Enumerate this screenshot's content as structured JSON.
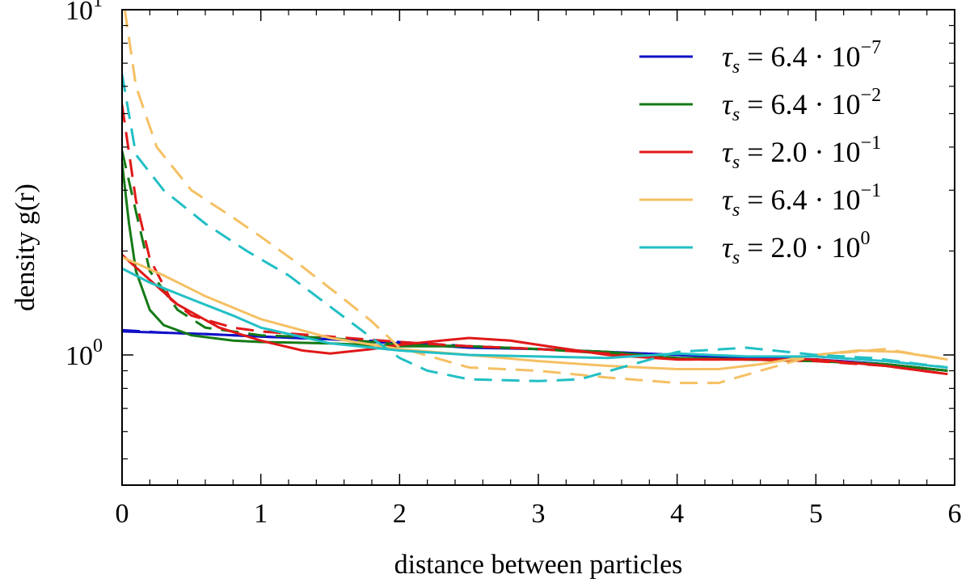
{
  "chart_data": {
    "type": "line",
    "title": "",
    "xlabel": "distance between particles",
    "ylabel": "density g(r)",
    "xlim": [
      0,
      6
    ],
    "ylim": [
      0.38,
      10
    ],
    "yscale": "log",
    "grid": false,
    "legend_position": "top-right",
    "x_ticks": [
      {
        "value": 0,
        "label": "0"
      },
      {
        "value": 1,
        "label": "1"
      },
      {
        "value": 2,
        "label": "2"
      },
      {
        "value": 3,
        "label": "3"
      },
      {
        "value": 4,
        "label": "4"
      },
      {
        "value": 5,
        "label": "5"
      },
      {
        "value": 6,
        "label": "6"
      }
    ],
    "y_ticks": [
      {
        "value": 1,
        "base": "10",
        "exp": "0"
      },
      {
        "value": 10,
        "base": "10",
        "exp": "1"
      }
    ],
    "series": [
      {
        "name": "τs = 6.4·10^-7",
        "legend": {
          "symbol": "τ",
          "sub": "s",
          "eq": " = 6.4 · 10",
          "exp": "−7"
        },
        "color": "#1010c8",
        "solid": [
          [
            0,
            1.17
          ],
          [
            0.3,
            1.16
          ],
          [
            0.6,
            1.15
          ],
          [
            1,
            1.13
          ],
          [
            1.5,
            1.11
          ],
          [
            2,
            1.08
          ],
          [
            2.5,
            1.05
          ],
          [
            3,
            1.04
          ],
          [
            3.5,
            1.02
          ],
          [
            4,
            1.0
          ],
          [
            4.5,
            0.98
          ],
          [
            5,
            0.97
          ],
          [
            5.5,
            0.94
          ],
          [
            5.95,
            0.9
          ]
        ],
        "dashed": [
          [
            0,
            1.18
          ],
          [
            0.3,
            1.16
          ],
          [
            0.6,
            1.15
          ],
          [
            1,
            1.13
          ],
          [
            1.5,
            1.11
          ],
          [
            2,
            1.09
          ],
          [
            2.5,
            1.06
          ],
          [
            3,
            1.04
          ],
          [
            3.5,
            1.02
          ],
          [
            4,
            1.0
          ],
          [
            4.5,
            0.98
          ],
          [
            5,
            0.97
          ],
          [
            5.5,
            0.94
          ],
          [
            5.95,
            0.9
          ]
        ]
      },
      {
        "name": "τs = 6.4·10^-2",
        "legend": {
          "symbol": "τ",
          "sub": "s",
          "eq": " = 6.4 · 10",
          "exp": "−2"
        },
        "color": "#157a15",
        "solid": [
          [
            0,
            3.6
          ],
          [
            0.05,
            2.4
          ],
          [
            0.1,
            1.75
          ],
          [
            0.2,
            1.35
          ],
          [
            0.3,
            1.22
          ],
          [
            0.5,
            1.14
          ],
          [
            0.8,
            1.1
          ],
          [
            1,
            1.09
          ],
          [
            1.5,
            1.08
          ],
          [
            2,
            1.06
          ],
          [
            2.5,
            1.06
          ],
          [
            3,
            1.04
          ],
          [
            3.5,
            1.02
          ],
          [
            4,
            0.98
          ],
          [
            4.5,
            0.97
          ],
          [
            5,
            0.96
          ],
          [
            5.5,
            0.94
          ],
          [
            5.95,
            0.9
          ]
        ],
        "dashed": [
          [
            0,
            3.9
          ],
          [
            0.1,
            2.6
          ],
          [
            0.2,
            1.75
          ],
          [
            0.4,
            1.35
          ],
          [
            0.6,
            1.2
          ],
          [
            1,
            1.14
          ],
          [
            1.5,
            1.12
          ],
          [
            2,
            1.07
          ],
          [
            2.5,
            1.06
          ],
          [
            3,
            1.04
          ],
          [
            3.5,
            1.01
          ],
          [
            4,
            0.98
          ],
          [
            4.5,
            0.97
          ],
          [
            5,
            0.96
          ],
          [
            5.5,
            0.94
          ],
          [
            5.95,
            0.9
          ]
        ]
      },
      {
        "name": "τs = 2.0·10^-1",
        "legend": {
          "symbol": "τ",
          "sub": "s",
          "eq": " = 2.0 · 10",
          "exp": "−1"
        },
        "color": "#e01818",
        "solid": [
          [
            0,
            1.95
          ],
          [
            0.2,
            1.65
          ],
          [
            0.4,
            1.4
          ],
          [
            0.7,
            1.2
          ],
          [
            1,
            1.1
          ],
          [
            1.3,
            1.03
          ],
          [
            1.5,
            1.01
          ],
          [
            1.8,
            1.04
          ],
          [
            2,
            1.07
          ],
          [
            2.3,
            1.1
          ],
          [
            2.5,
            1.12
          ],
          [
            2.8,
            1.1
          ],
          [
            3,
            1.07
          ],
          [
            3.5,
            1.0
          ],
          [
            4,
            0.97
          ],
          [
            4.5,
            0.97
          ],
          [
            5,
            0.97
          ],
          [
            5.5,
            0.93
          ],
          [
            5.95,
            0.88
          ]
        ],
        "dashed": [
          [
            0,
            5.3
          ],
          [
            0.1,
            2.8
          ],
          [
            0.2,
            1.9
          ],
          [
            0.35,
            1.45
          ],
          [
            0.5,
            1.3
          ],
          [
            0.8,
            1.2
          ],
          [
            1,
            1.17
          ],
          [
            1.5,
            1.13
          ],
          [
            2,
            1.09
          ],
          [
            2.5,
            1.06
          ],
          [
            3,
            1.04
          ],
          [
            3.5,
            1.01
          ],
          [
            4,
            0.97
          ],
          [
            4.5,
            0.97
          ],
          [
            5,
            0.96
          ],
          [
            5.5,
            0.93
          ],
          [
            5.95,
            0.88
          ]
        ]
      },
      {
        "name": "τs = 6.4·10^-1",
        "legend": {
          "symbol": "τ",
          "sub": "s",
          "eq": " = 6.4 · 10",
          "exp": "−1"
        },
        "color": "#f5c063",
        "solid": [
          [
            0,
            1.92
          ],
          [
            0.3,
            1.7
          ],
          [
            0.6,
            1.48
          ],
          [
            1,
            1.27
          ],
          [
            1.5,
            1.12
          ],
          [
            2,
            1.04
          ],
          [
            2.5,
            1.0
          ],
          [
            3,
            0.96
          ],
          [
            3.5,
            0.93
          ],
          [
            4,
            0.91
          ],
          [
            4.3,
            0.91
          ],
          [
            4.6,
            0.94
          ],
          [
            5,
            1.0
          ],
          [
            5.3,
            1.03
          ],
          [
            5.6,
            1.02
          ],
          [
            5.95,
            0.97
          ]
        ],
        "dashed": [
          [
            0.02,
            10
          ],
          [
            0.1,
            6.0
          ],
          [
            0.25,
            4.0
          ],
          [
            0.5,
            3.0
          ],
          [
            0.8,
            2.5
          ],
          [
            1,
            2.2
          ],
          [
            1.3,
            1.8
          ],
          [
            1.6,
            1.45
          ],
          [
            1.8,
            1.25
          ],
          [
            2,
            1.05
          ],
          [
            2.5,
            0.92
          ],
          [
            3,
            0.9
          ],
          [
            3.5,
            0.86
          ],
          [
            4,
            0.83
          ],
          [
            4.3,
            0.83
          ],
          [
            4.6,
            0.9
          ],
          [
            5,
            1.0
          ],
          [
            5.5,
            1.04
          ],
          [
            5.95,
            0.97
          ]
        ]
      },
      {
        "name": "τs = 2.0·10^0",
        "legend": {
          "symbol": "τ",
          "sub": "s",
          "eq": " = 2.0 · 10",
          "exp": "0"
        },
        "color": "#22bfc4",
        "solid": [
          [
            0,
            1.78
          ],
          [
            0.2,
            1.62
          ],
          [
            0.5,
            1.45
          ],
          [
            0.8,
            1.3
          ],
          [
            1,
            1.2
          ],
          [
            1.5,
            1.08
          ],
          [
            2,
            1.03
          ],
          [
            2.5,
            1.0
          ],
          [
            3,
            0.99
          ],
          [
            3.5,
            0.98
          ],
          [
            4,
            1.01
          ],
          [
            4.5,
            0.99
          ],
          [
            5,
            0.99
          ],
          [
            5.5,
            0.96
          ],
          [
            5.95,
            0.92
          ]
        ],
        "dashed": [
          [
            0,
            6.5
          ],
          [
            0.1,
            3.8
          ],
          [
            0.3,
            3.0
          ],
          [
            0.6,
            2.4
          ],
          [
            0.9,
            2.0
          ],
          [
            1.2,
            1.7
          ],
          [
            1.5,
            1.38
          ],
          [
            1.8,
            1.12
          ],
          [
            2,
            0.98
          ],
          [
            2.2,
            0.9
          ],
          [
            2.5,
            0.85
          ],
          [
            3,
            0.84
          ],
          [
            3.3,
            0.85
          ],
          [
            3.6,
            0.92
          ],
          [
            4,
            1.02
          ],
          [
            4.5,
            1.05
          ],
          [
            5,
            1.0
          ],
          [
            5.4,
            0.98
          ],
          [
            5.95,
            0.92
          ]
        ]
      }
    ]
  }
}
